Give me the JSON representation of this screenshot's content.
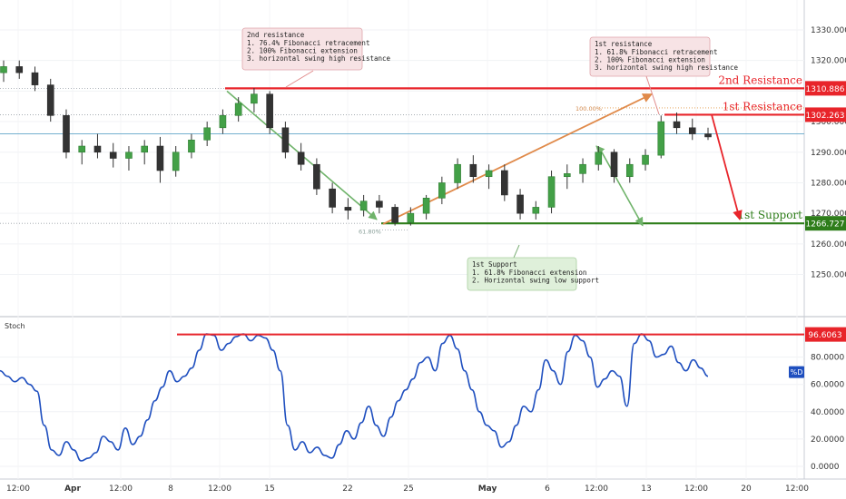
{
  "chart_data": {
    "type": "candlestick",
    "series_smoothing": "candles",
    "price_axis": {
      "ticks": [
        "1330.000",
        "1320.000",
        "1310.000",
        "1300.000",
        "1290.000",
        "1280.000",
        "1270.000",
        "1260.000",
        "1250.000"
      ],
      "ylim": [
        1238,
        1338
      ]
    },
    "time_axis": {
      "ticks": [
        "12:00",
        "Apr",
        "12:00",
        "8",
        "12:00",
        "15",
        "22",
        "25",
        "May",
        "6",
        "12:00",
        "13",
        "12:00",
        "20",
        "12:00"
      ]
    },
    "candles": [
      {
        "o": 1316,
        "h": 1320,
        "l": 1313,
        "c": 1318
      },
      {
        "o": 1318,
        "h": 1320,
        "l": 1314,
        "c": 1316
      },
      {
        "o": 1316,
        "h": 1318,
        "l": 1310,
        "c": 1312
      },
      {
        "o": 1312,
        "h": 1314,
        "l": 1300,
        "c": 1302
      },
      {
        "o": 1302,
        "h": 1304,
        "l": 1288,
        "c": 1290
      },
      {
        "o": 1290,
        "h": 1294,
        "l": 1286,
        "c": 1292
      },
      {
        "o": 1292,
        "h": 1296,
        "l": 1288,
        "c": 1290
      },
      {
        "o": 1290,
        "h": 1293,
        "l": 1285,
        "c": 1288
      },
      {
        "o": 1288,
        "h": 1292,
        "l": 1284,
        "c": 1290
      },
      {
        "o": 1290,
        "h": 1294,
        "l": 1286,
        "c": 1292
      },
      {
        "o": 1292,
        "h": 1295,
        "l": 1280,
        "c": 1284
      },
      {
        "o": 1284,
        "h": 1292,
        "l": 1282,
        "c": 1290
      },
      {
        "o": 1290,
        "h": 1296,
        "l": 1288,
        "c": 1294
      },
      {
        "o": 1294,
        "h": 1300,
        "l": 1292,
        "c": 1298
      },
      {
        "o": 1298,
        "h": 1304,
        "l": 1296,
        "c": 1302
      },
      {
        "o": 1302,
        "h": 1308,
        "l": 1300,
        "c": 1306
      },
      {
        "o": 1306,
        "h": 1311,
        "l": 1303,
        "c": 1309
      },
      {
        "o": 1309,
        "h": 1310,
        "l": 1296,
        "c": 1298
      },
      {
        "o": 1298,
        "h": 1300,
        "l": 1288,
        "c": 1290
      },
      {
        "o": 1290,
        "h": 1293,
        "l": 1284,
        "c": 1286
      },
      {
        "o": 1286,
        "h": 1288,
        "l": 1276,
        "c": 1278
      },
      {
        "o": 1278,
        "h": 1280,
        "l": 1270,
        "c": 1272
      },
      {
        "o": 1272,
        "h": 1275,
        "l": 1268,
        "c": 1271
      },
      {
        "o": 1271,
        "h": 1276,
        "l": 1269,
        "c": 1274
      },
      {
        "o": 1274,
        "h": 1276,
        "l": 1270,
        "c": 1272
      },
      {
        "o": 1272,
        "h": 1273,
        "l": 1266,
        "c": 1267
      },
      {
        "o": 1267,
        "h": 1272,
        "l": 1266,
        "c": 1270
      },
      {
        "o": 1270,
        "h": 1276,
        "l": 1268,
        "c": 1275
      },
      {
        "o": 1275,
        "h": 1282,
        "l": 1273,
        "c": 1280
      },
      {
        "o": 1280,
        "h": 1288,
        "l": 1278,
        "c": 1286
      },
      {
        "o": 1286,
        "h": 1289,
        "l": 1280,
        "c": 1282
      },
      {
        "o": 1282,
        "h": 1286,
        "l": 1278,
        "c": 1284
      },
      {
        "o": 1284,
        "h": 1286,
        "l": 1274,
        "c": 1276
      },
      {
        "o": 1276,
        "h": 1278,
        "l": 1268,
        "c": 1270
      },
      {
        "o": 1270,
        "h": 1274,
        "l": 1268,
        "c": 1272
      },
      {
        "o": 1272,
        "h": 1284,
        "l": 1270,
        "c": 1282
      },
      {
        "o": 1282,
        "h": 1286,
        "l": 1278,
        "c": 1283
      },
      {
        "o": 1283,
        "h": 1288,
        "l": 1280,
        "c": 1286
      },
      {
        "o": 1286,
        "h": 1292,
        "l": 1284,
        "c": 1290
      },
      {
        "o": 1290,
        "h": 1291,
        "l": 1280,
        "c": 1282
      },
      {
        "o": 1282,
        "h": 1288,
        "l": 1280,
        "c": 1286
      },
      {
        "o": 1286,
        "h": 1291,
        "l": 1284,
        "c": 1289
      },
      {
        "o": 1289,
        "h": 1302,
        "l": 1288,
        "c": 1300
      },
      {
        "o": 1300,
        "h": 1303,
        "l": 1296,
        "c": 1298
      },
      {
        "o": 1298,
        "h": 1301,
        "l": 1294,
        "c": 1296
      },
      {
        "o": 1296,
        "h": 1298,
        "l": 1294,
        "c": 1295
      }
    ],
    "levels": [
      {
        "name": "2nd Resistance",
        "value": "1310.886",
        "y": 1310.886,
        "color": "#e8242a"
      },
      {
        "name": "1st Resistance",
        "value": "1302.263",
        "y": 1302.263,
        "color": "#e8242a"
      },
      {
        "name": "1st Support",
        "value": "1266.727",
        "y": 1266.727,
        "color": "#2e7d1a"
      }
    ],
    "current_price_line": 1296,
    "fib_labels": [
      {
        "text": "100.00%",
        "y": 1304.5
      },
      {
        "text": "61.80%",
        "y": 1266
      }
    ],
    "annotations": [
      {
        "id": "second-resistance-note",
        "title": "2nd resistance",
        "lines": [
          "1. 76.4% Fibonacci retracement",
          "2. 100% Fibonacci extension",
          "3. horizontal swing high resistance"
        ],
        "style": "red"
      },
      {
        "id": "first-resistance-note",
        "title": "1st resistance",
        "lines": [
          "1. 61.8% Fibonacci retracement",
          "2. 100% Fibonacci extension",
          "3. horizontal swing high resistance"
        ],
        "style": "red"
      },
      {
        "id": "first-support-note",
        "title": "1st Support",
        "lines": [
          "1. 61.8% Fibonacci extension",
          "2. Horizontal swing low support"
        ],
        "style": "green"
      }
    ],
    "stoch": {
      "title": "Stoch",
      "ticks": [
        "80.0000",
        "60.0000",
        "40.0000",
        "20.0000",
        "0.0000"
      ],
      "ylim": [
        -8,
        105
      ],
      "level": {
        "value": "96.6063",
        "y": 96.6063
      },
      "badge": "%D",
      "values": [
        70,
        66,
        62,
        65,
        60,
        55,
        30,
        12,
        8,
        18,
        12,
        4,
        6,
        10,
        22,
        18,
        12,
        28,
        16,
        22,
        34,
        48,
        58,
        70,
        62,
        66,
        72,
        85,
        97,
        96,
        85,
        90,
        95,
        97,
        92,
        96,
        94,
        85,
        70,
        30,
        12,
        18,
        10,
        14,
        8,
        6,
        16,
        26,
        20,
        32,
        44,
        30,
        22,
        36,
        48,
        56,
        64,
        76,
        80,
        70,
        90,
        96,
        86,
        70,
        56,
        40,
        30,
        26,
        14,
        18,
        30,
        44,
        40,
        56,
        78,
        70,
        60,
        84,
        96,
        92,
        80,
        58,
        64,
        70,
        66,
        44,
        90,
        97,
        92,
        80,
        82,
        88,
        76,
        70,
        78,
        72,
        66
      ]
    }
  }
}
